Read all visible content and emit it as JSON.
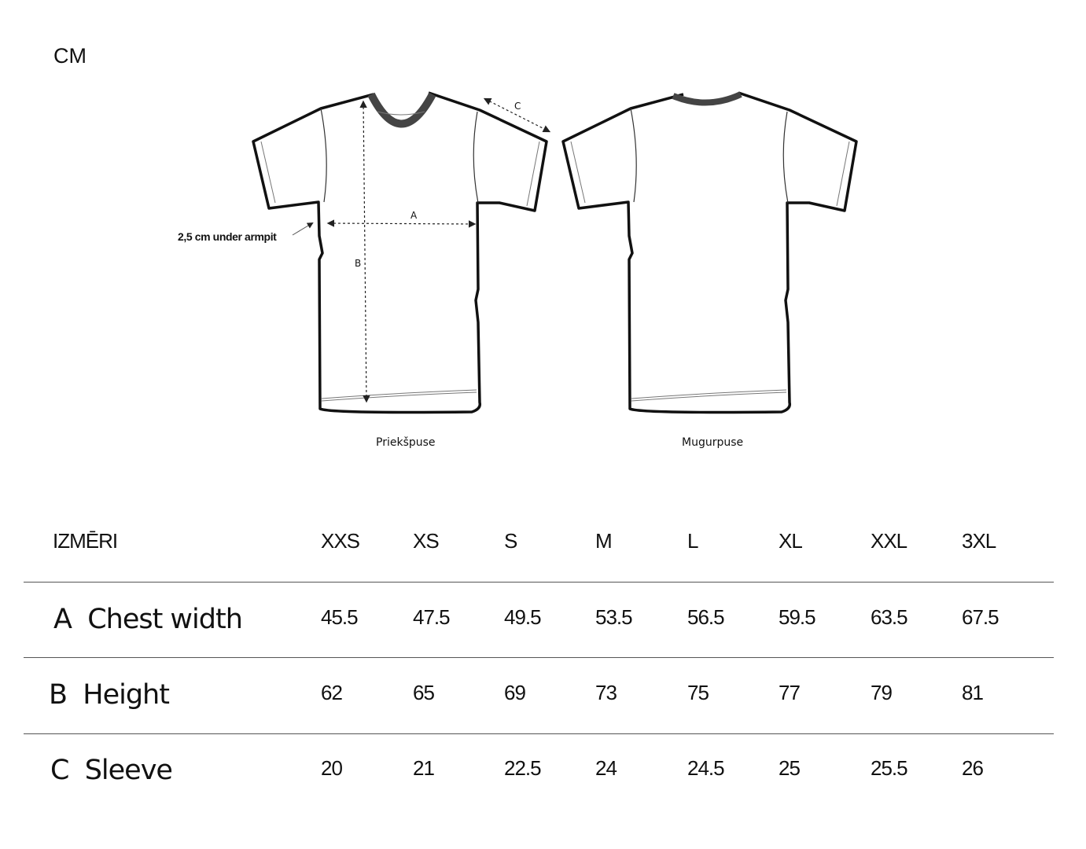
{
  "unit": "CM",
  "diagram": {
    "note": "2,5 cm under armpit",
    "front_label": "Priekšpuse",
    "back_label": "Mugurpuse",
    "marks": {
      "a": "A",
      "b": "B",
      "c": "C"
    }
  },
  "table": {
    "header": "IZMĒRI",
    "sizes": [
      "XXS",
      "XS",
      "S",
      "M",
      "L",
      "XL",
      "XXL",
      "3XL"
    ],
    "rows": [
      {
        "label": "A  Chest width",
        "values": [
          "45.5",
          "47.5",
          "49.5",
          "53.5",
          "56.5",
          "59.5",
          "63.5",
          "67.5"
        ]
      },
      {
        "label": "B  Height",
        "values": [
          "62",
          "65",
          "69",
          "73",
          "75",
          "77",
          "79",
          "81"
        ]
      },
      {
        "label": "C  Sleeve",
        "values": [
          "20",
          "21",
          "22.5",
          "24",
          "24.5",
          "25",
          "25.5",
          "26"
        ]
      }
    ]
  }
}
